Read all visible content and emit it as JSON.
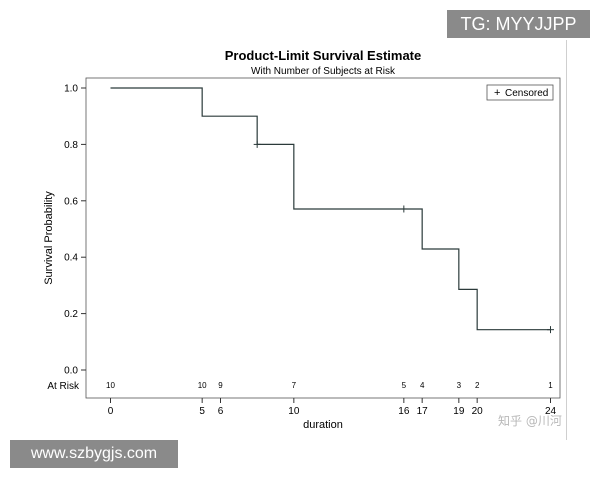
{
  "chart_data": {
    "type": "line",
    "title": "Product-Limit Survival Estimate",
    "subtitle": "With Number of Subjects at Risk",
    "xlabel": "duration",
    "ylabel": "Survival Probability",
    "xlim": [
      0,
      24
    ],
    "ylim": [
      0,
      1
    ],
    "x_ticks": [
      "0",
      "5",
      "6",
      "10",
      "16",
      "17",
      "19",
      "20",
      "24"
    ],
    "x_tick_values": [
      0,
      5,
      6,
      10,
      16,
      17,
      19,
      20,
      24
    ],
    "y_ticks": [
      "0.0",
      "0.2",
      "0.4",
      "0.6",
      "0.8",
      "1.0"
    ],
    "y_tick_values": [
      0,
      0.2,
      0.4,
      0.6,
      0.8,
      1.0
    ],
    "grid": false,
    "series": [
      {
        "name": "",
        "step": true,
        "x": [
          0,
          5,
          8,
          10,
          16,
          17,
          19,
          20,
          24
        ],
        "y": [
          1.0,
          0.9,
          0.8,
          0.571,
          0.571,
          0.429,
          0.286,
          0.143,
          0.143
        ]
      }
    ],
    "censored": [
      {
        "x": 8,
        "y": 0.8
      },
      {
        "x": 16,
        "y": 0.571
      },
      {
        "x": 24,
        "y": 0.143
      }
    ],
    "legend": {
      "symbol": "+",
      "label": "Censored",
      "placement": "top-right"
    },
    "at_risk": {
      "label": "At Risk",
      "x": [
        0,
        5,
        6,
        10,
        16,
        17,
        19,
        20,
        24
      ],
      "n": [
        "10",
        "10",
        "9",
        "7",
        "5",
        "4",
        "3",
        "2",
        "1"
      ]
    },
    "color": "#2b3a3a"
  },
  "watermarks": {
    "top": "TG: MYYJJPP",
    "bottom": "www.szbygjs.com",
    "zhihu": "知乎 @川河"
  }
}
